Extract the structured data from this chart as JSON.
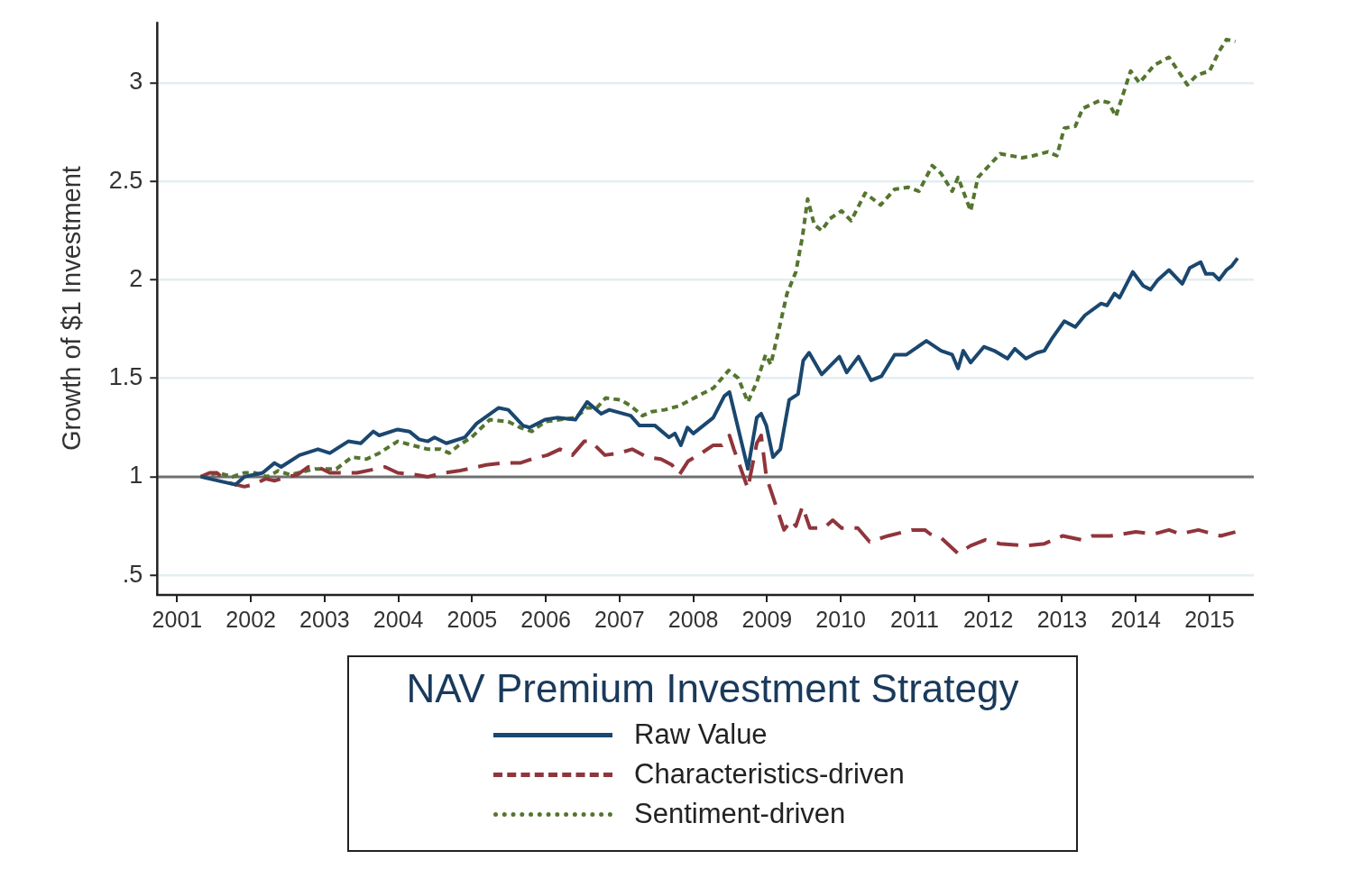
{
  "chart_data": {
    "type": "line",
    "ylabel": "Growth of $1 Investment",
    "legend_title": "NAV Premium Investment Strategy",
    "legend": "bottom",
    "grid": "y",
    "marker": "none",
    "xlim": [
      2000.73,
      2015.6
    ],
    "xticks": [
      2001,
      2002,
      2003,
      2004,
      2005,
      2006,
      2007,
      2008,
      2009,
      2010,
      2011,
      2012,
      2013,
      2014,
      2015
    ],
    "ylim": [
      0.4,
      3.31
    ],
    "yticks": [
      {
        "value": 0.5,
        "label": ".5"
      },
      1,
      1.5,
      2,
      2.5,
      3
    ],
    "ref_lines": [
      {
        "axis": "y",
        "value": 1,
        "color": "#707070"
      }
    ],
    "series": [
      {
        "name": "Raw Value",
        "color": "#1a476f",
        "line_style": "solid",
        "x": [
          2001.32,
          2001.79,
          2001.91,
          2002.16,
          2002.32,
          2002.41,
          2002.66,
          2002.91,
          2003.07,
          2003.32,
          2003.49,
          2003.66,
          2003.74,
          2003.99,
          2004.15,
          2004.28,
          2004.4,
          2004.49,
          2004.65,
          2004.9,
          2005.06,
          2005.36,
          2005.49,
          2005.69,
          2005.78,
          2005.99,
          2006.15,
          2006.4,
          2006.56,
          2006.75,
          2006.86,
          2007.15,
          2007.27,
          2007.48,
          2007.67,
          2007.75,
          2007.83,
          2007.92,
          2008.0,
          2008.27,
          2008.42,
          2008.49,
          2008.74,
          2008.86,
          2008.92,
          2008.99,
          2009.08,
          2009.18,
          2009.3,
          2009.42,
          2009.49,
          2009.57,
          2009.74,
          2009.98,
          2010.08,
          2010.24,
          2010.41,
          2010.55,
          2010.73,
          2010.89,
          2011.16,
          2011.36,
          2011.51,
          2011.59,
          2011.66,
          2011.76,
          2011.94,
          2012.08,
          2012.26,
          2012.36,
          2012.51,
          2012.66,
          2012.76,
          2012.86,
          2013.03,
          2013.18,
          2013.31,
          2013.53,
          2013.61,
          2013.71,
          2013.78,
          2013.96,
          2014.1,
          2014.2,
          2014.3,
          2014.45,
          2014.63,
          2014.73,
          2014.88,
          2014.95,
          2015.05,
          2015.13,
          2015.23,
          2015.3,
          2015.38
        ],
        "values": [
          1.0,
          0.96,
          1.0,
          1.02,
          1.07,
          1.05,
          1.11,
          1.14,
          1.12,
          1.18,
          1.17,
          1.23,
          1.21,
          1.24,
          1.23,
          1.19,
          1.18,
          1.2,
          1.17,
          1.2,
          1.27,
          1.35,
          1.34,
          1.26,
          1.25,
          1.29,
          1.3,
          1.29,
          1.38,
          1.32,
          1.34,
          1.31,
          1.26,
          1.26,
          1.2,
          1.22,
          1.16,
          1.25,
          1.22,
          1.3,
          1.41,
          1.43,
          1.04,
          1.3,
          1.32,
          1.26,
          1.1,
          1.14,
          1.39,
          1.42,
          1.59,
          1.63,
          1.52,
          1.61,
          1.53,
          1.61,
          1.49,
          1.51,
          1.62,
          1.62,
          1.69,
          1.64,
          1.62,
          1.55,
          1.64,
          1.58,
          1.66,
          1.64,
          1.6,
          1.65,
          1.6,
          1.63,
          1.64,
          1.7,
          1.79,
          1.76,
          1.82,
          1.88,
          1.87,
          1.93,
          1.91,
          2.04,
          1.97,
          1.95,
          2.0,
          2.05,
          1.98,
          2.06,
          2.09,
          2.03,
          2.03,
          2.0,
          2.05,
          2.07,
          2.11
        ]
      },
      {
        "name": "Characteristics-driven",
        "color": "#90353b",
        "line_style": "dashed",
        "x": [
          2001.32,
          2001.44,
          2001.54,
          2001.69,
          2001.91,
          2002.03,
          2002.2,
          2002.32,
          2002.5,
          2002.63,
          2002.78,
          2002.91,
          2003.07,
          2003.44,
          2003.82,
          2003.99,
          2004.24,
          2004.4,
          2004.62,
          2004.82,
          2005.19,
          2005.4,
          2005.65,
          2005.81,
          2006.02,
          2006.19,
          2006.36,
          2006.52,
          2006.61,
          2006.8,
          2006.99,
          2007.17,
          2007.37,
          2007.56,
          2007.71,
          2007.81,
          2007.93,
          2008.11,
          2008.27,
          2008.39,
          2008.49,
          2008.55,
          2008.74,
          2008.77,
          2008.86,
          2008.92,
          2008.99,
          2009.23,
          2009.33,
          2009.39,
          2009.48,
          2009.58,
          2009.77,
          2009.89,
          2010.01,
          2010.23,
          2010.39,
          2010.64,
          2010.96,
          2011.14,
          2011.21,
          2011.36,
          2011.59,
          2011.76,
          2011.96,
          2012.16,
          2012.51,
          2012.76,
          2013.01,
          2013.26,
          2013.41,
          2013.66,
          2014.0,
          2014.25,
          2014.45,
          2014.6,
          2014.85,
          2014.95,
          2015.15,
          2015.35
        ],
        "values": [
          1.0,
          1.02,
          1.02,
          0.97,
          0.95,
          0.96,
          0.99,
          0.98,
          1.0,
          1.01,
          1.05,
          1.05,
          1.02,
          1.02,
          1.05,
          1.02,
          1.01,
          1.0,
          1.02,
          1.03,
          1.06,
          1.07,
          1.07,
          1.09,
          1.11,
          1.14,
          1.11,
          1.18,
          1.18,
          1.11,
          1.12,
          1.14,
          1.1,
          1.09,
          1.06,
          1.01,
          1.08,
          1.12,
          1.16,
          1.16,
          1.21,
          1.14,
          0.94,
          1.0,
          1.17,
          1.21,
          1.0,
          0.73,
          0.78,
          0.75,
          0.85,
          0.74,
          0.74,
          0.78,
          0.74,
          0.74,
          0.67,
          0.7,
          0.73,
          0.73,
          0.71,
          0.69,
          0.61,
          0.65,
          0.68,
          0.66,
          0.65,
          0.66,
          0.7,
          0.68,
          0.7,
          0.7,
          0.72,
          0.71,
          0.73,
          0.71,
          0.73,
          0.72,
          0.7,
          0.72
        ]
      },
      {
        "name": "Sentiment-driven",
        "color": "#55752f",
        "line_style": "dotted",
        "x": [
          2001.32,
          2001.56,
          2001.75,
          2001.91,
          2002.06,
          2002.22,
          2002.37,
          2002.53,
          2002.87,
          2003.16,
          2003.37,
          2003.57,
          2003.74,
          2003.99,
          2004.19,
          2004.4,
          2004.57,
          2004.69,
          2004.82,
          2004.99,
          2005.24,
          2005.49,
          2005.65,
          2005.81,
          2005.99,
          2006.19,
          2006.4,
          2006.56,
          2006.69,
          2006.81,
          2007.02,
          2007.15,
          2007.31,
          2007.43,
          2007.61,
          2007.81,
          2008.06,
          2008.27,
          2008.48,
          2008.61,
          2008.74,
          2008.86,
          2008.98,
          2009.05,
          2009.18,
          2009.27,
          2009.39,
          2009.48,
          2009.55,
          2009.64,
          2009.74,
          2009.85,
          2010.01,
          2010.14,
          2010.33,
          2010.54,
          2010.73,
          2010.91,
          2011.06,
          2011.24,
          2011.36,
          2011.51,
          2011.59,
          2011.76,
          2011.86,
          2012.16,
          2012.46,
          2012.61,
          2012.81,
          2012.93,
          2013.03,
          2013.18,
          2013.28,
          2013.51,
          2013.63,
          2013.73,
          2013.93,
          2014.05,
          2014.25,
          2014.45,
          2014.7,
          2014.83,
          2015.0,
          2015.13,
          2015.23,
          2015.35
        ],
        "values": [
          1.0,
          1.02,
          1.0,
          1.02,
          1.02,
          1.0,
          1.03,
          1.01,
          1.04,
          1.04,
          1.1,
          1.09,
          1.12,
          1.18,
          1.16,
          1.14,
          1.14,
          1.12,
          1.16,
          1.2,
          1.29,
          1.28,
          1.25,
          1.23,
          1.28,
          1.29,
          1.3,
          1.35,
          1.35,
          1.4,
          1.39,
          1.36,
          1.31,
          1.33,
          1.34,
          1.36,
          1.41,
          1.45,
          1.54,
          1.5,
          1.38,
          1.48,
          1.62,
          1.57,
          1.78,
          1.93,
          2.04,
          2.22,
          2.41,
          2.28,
          2.25,
          2.31,
          2.35,
          2.3,
          2.44,
          2.38,
          2.46,
          2.47,
          2.45,
          2.58,
          2.54,
          2.45,
          2.52,
          2.35,
          2.52,
          2.64,
          2.62,
          2.63,
          2.65,
          2.63,
          2.77,
          2.78,
          2.87,
          2.91,
          2.9,
          2.83,
          3.06,
          3.0,
          3.09,
          3.13,
          2.99,
          3.04,
          3.06,
          3.16,
          3.22,
          3.21
        ]
      }
    ]
  }
}
